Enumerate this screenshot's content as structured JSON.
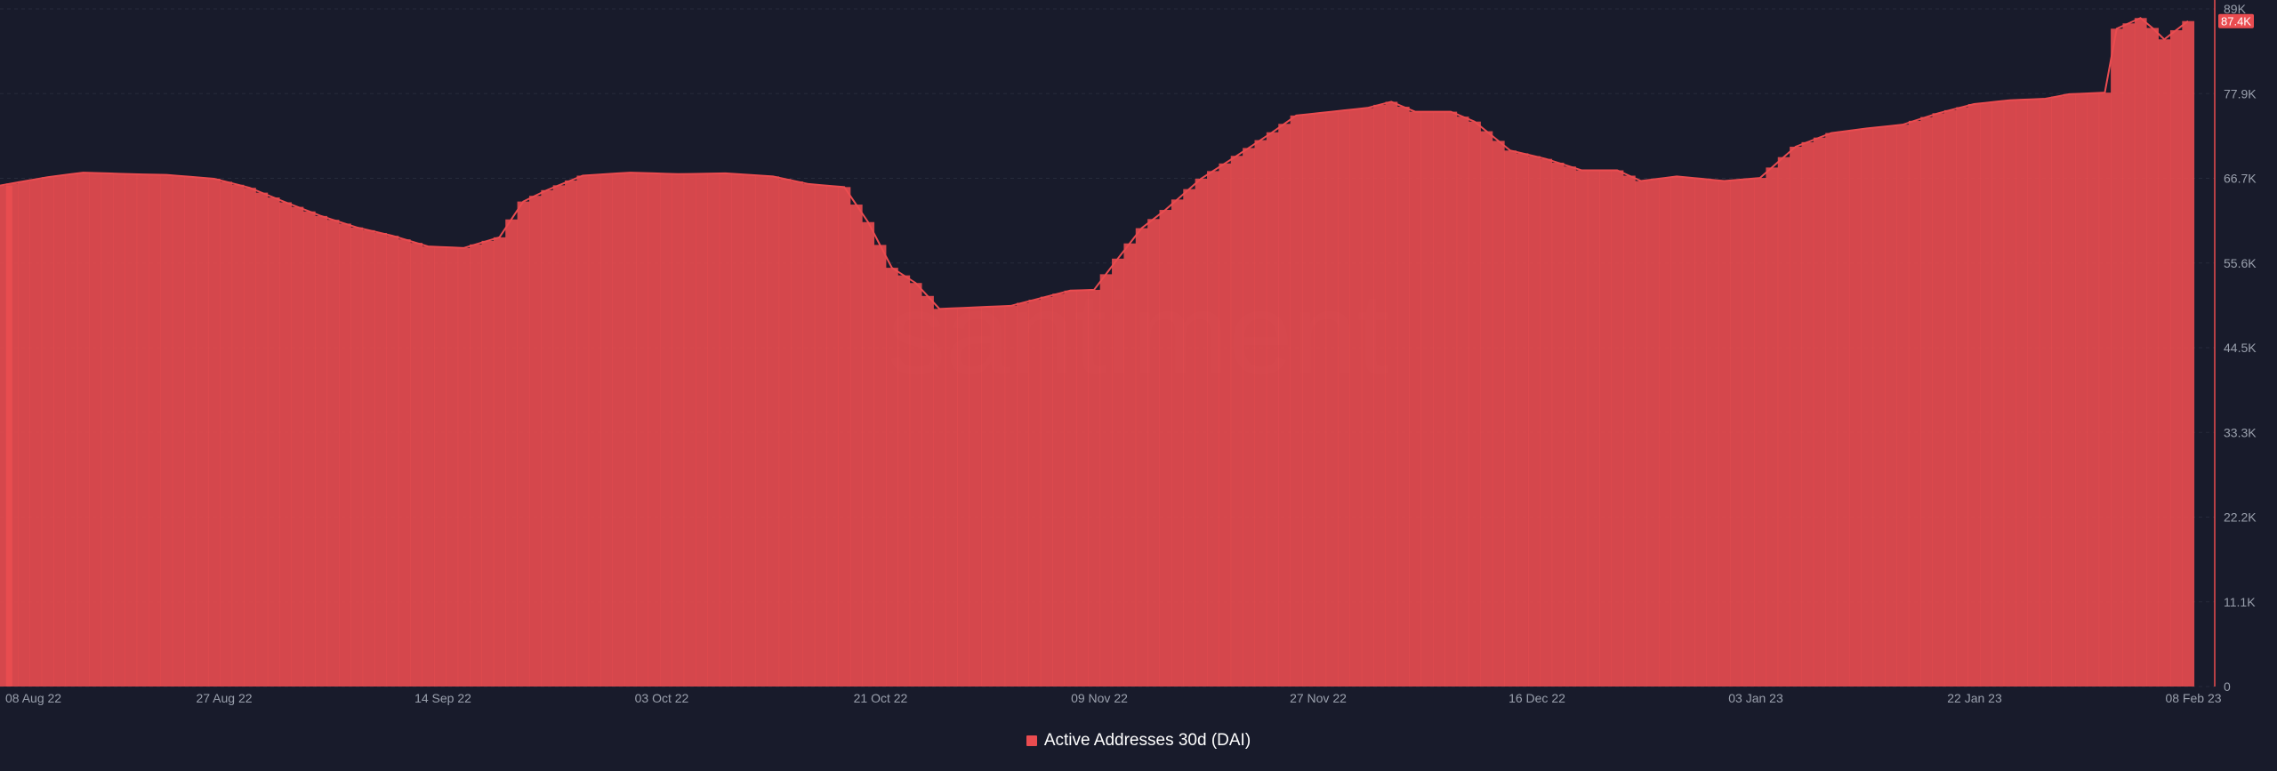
{
  "colors": {
    "background": "#181b2b",
    "series": "#ea4c50",
    "axis_text": "#9aa0ad",
    "grid": "#262a3b"
  },
  "watermark": "santiment",
  "chart_data": {
    "type": "area",
    "title": "",
    "xlabel": "",
    "ylabel": "",
    "grid": true,
    "legend_placement": "bottom-center",
    "x_tick_labels": [
      "08 Aug 22",
      "27 Aug 22",
      "14 Sep 22",
      "03 Oct 22",
      "21 Oct 22",
      "09 Nov 22",
      "27 Nov 22",
      "16 Dec 22",
      "03 Jan 23",
      "22 Jan 23",
      "08 Feb 23"
    ],
    "y_tick_labels": [
      "0",
      "11.1K",
      "22.2K",
      "33.3K",
      "44.5K",
      "55.6K",
      "66.7K",
      "77.9K",
      "89K"
    ],
    "ylim": [
      0,
      89000
    ],
    "xlim": [
      "2022-08-08",
      "2023-02-08"
    ],
    "last_value_label": "87.4K",
    "series": [
      {
        "name": "Active Addresses 30d (DAI)",
        "points": [
          [
            "2022-08-08",
            65800
          ],
          [
            "2022-08-12",
            66900
          ],
          [
            "2022-08-15",
            67500
          ],
          [
            "2022-08-19",
            67300
          ],
          [
            "2022-08-22",
            67200
          ],
          [
            "2022-08-26",
            66700
          ],
          [
            "2022-08-29",
            65500
          ],
          [
            "2022-09-01",
            63600
          ],
          [
            "2022-09-04",
            61800
          ],
          [
            "2022-09-07",
            60300
          ],
          [
            "2022-09-10",
            59200
          ],
          [
            "2022-09-13",
            57800
          ],
          [
            "2022-09-16",
            57600
          ],
          [
            "2022-09-19",
            59000
          ],
          [
            "2022-09-21",
            63700
          ],
          [
            "2022-09-23",
            65200
          ],
          [
            "2022-09-26",
            67100
          ],
          [
            "2022-09-30",
            67500
          ],
          [
            "2022-10-04",
            67300
          ],
          [
            "2022-10-08",
            67400
          ],
          [
            "2022-10-12",
            67000
          ],
          [
            "2022-10-15",
            66000
          ],
          [
            "2022-10-18",
            65600
          ],
          [
            "2022-10-20",
            61000
          ],
          [
            "2022-10-22",
            55000
          ],
          [
            "2022-10-24",
            53000
          ],
          [
            "2022-10-26",
            49600
          ],
          [
            "2022-10-29",
            49800
          ],
          [
            "2022-11-01",
            50000
          ],
          [
            "2022-11-04",
            51200
          ],
          [
            "2022-11-06",
            52000
          ],
          [
            "2022-11-08",
            52100
          ],
          [
            "2022-11-10",
            56200
          ],
          [
            "2022-11-12",
            60200
          ],
          [
            "2022-11-14",
            62600
          ],
          [
            "2022-11-17",
            66700
          ],
          [
            "2022-11-20",
            69700
          ],
          [
            "2022-11-23",
            72800
          ],
          [
            "2022-11-25",
            75000
          ],
          [
            "2022-11-28",
            75500
          ],
          [
            "2022-12-01",
            76000
          ],
          [
            "2022-12-03",
            76800
          ],
          [
            "2022-12-05",
            75500
          ],
          [
            "2022-12-08",
            75500
          ],
          [
            "2022-12-10",
            74200
          ],
          [
            "2022-12-13",
            70400
          ],
          [
            "2022-12-16",
            69300
          ],
          [
            "2022-12-19",
            67800
          ],
          [
            "2022-12-22",
            67800
          ],
          [
            "2022-12-24",
            66400
          ],
          [
            "2022-12-27",
            67000
          ],
          [
            "2022-12-31",
            66400
          ],
          [
            "2023-01-03",
            66800
          ],
          [
            "2023-01-06",
            70900
          ],
          [
            "2023-01-09",
            72700
          ],
          [
            "2023-01-12",
            73300
          ],
          [
            "2023-01-15",
            73800
          ],
          [
            "2023-01-18",
            75300
          ],
          [
            "2023-01-21",
            76500
          ],
          [
            "2023-01-24",
            77000
          ],
          [
            "2023-01-27",
            77200
          ],
          [
            "2023-01-29",
            77800
          ],
          [
            "2023-02-01",
            78000
          ],
          [
            "2023-02-02",
            86400
          ],
          [
            "2023-02-04",
            87800
          ],
          [
            "2023-02-05",
            86500
          ],
          [
            "2023-02-06",
            85000
          ],
          [
            "2023-02-07",
            86200
          ],
          [
            "2023-02-08",
            87400
          ]
        ]
      }
    ]
  }
}
